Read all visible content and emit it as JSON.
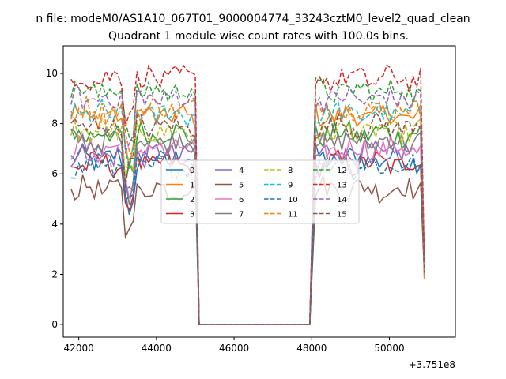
{
  "chart_data": {
    "type": "line",
    "suptitle": "n file: modeM0/AS1A10_067T01_9000004774_33243cztM0_level2_quad_clean",
    "title": "Quadrant 1 module wise count rates with 100.0s bins.",
    "xlabel": "",
    "ylabel": "",
    "x_offset_label": "+3.751e8",
    "xlim": [
      41600,
      51700
    ],
    "ylim": [
      -0.5,
      11.1
    ],
    "x_ticks": [
      42000,
      44000,
      46000,
      48000,
      50000
    ],
    "x_tick_labels": [
      "42000",
      "44000",
      "46000",
      "48000",
      "50000"
    ],
    "y_ticks": [
      0,
      2,
      4,
      6,
      8,
      10
    ],
    "y_tick_labels": [
      "0",
      "2",
      "4",
      "6",
      "8",
      "10"
    ],
    "legend_location": "center",
    "legend_columns": 4,
    "segments": [
      {
        "x_start": 41800,
        "x_end": 45000,
        "bins": 33
      },
      {
        "x_start": 48000,
        "x_end": 50900,
        "bins": 30
      }
    ],
    "gap": {
      "x_from": 45100,
      "x_to": 47950,
      "value": 0
    },
    "series": [
      {
        "name": "0",
        "color": "#1f77b4",
        "dash": "solid",
        "base": 6.6
      },
      {
        "name": "1",
        "color": "#ff7f0e",
        "dash": "solid",
        "base": 8.3
      },
      {
        "name": "2",
        "color": "#2ca02c",
        "dash": "solid",
        "base": 7.6
      },
      {
        "name": "3",
        "color": "#d62728",
        "dash": "solid",
        "base": 6.4
      },
      {
        "name": "4",
        "color": "#9467bd",
        "dash": "solid",
        "base": 6.8
      },
      {
        "name": "5",
        "color": "#8c564b",
        "dash": "solid",
        "base": 5.4
      },
      {
        "name": "6",
        "color": "#e377c2",
        "dash": "solid",
        "base": 7.0
      },
      {
        "name": "7",
        "color": "#7f7f7f",
        "dash": "solid",
        "base": 7.3
      },
      {
        "name": "8",
        "color": "#bcbd22",
        "dash": "dashed",
        "base": 7.7
      },
      {
        "name": "9",
        "color": "#17becf",
        "dash": "dashed",
        "base": 8.4
      },
      {
        "name": "10",
        "color": "#1f77b4",
        "dash": "dashed",
        "base": 6.3
      },
      {
        "name": "11",
        "color": "#ff7f0e",
        "dash": "dashed",
        "base": 8.6
      },
      {
        "name": "12",
        "color": "#2ca02c",
        "dash": "dashed",
        "base": 9.3
      },
      {
        "name": "13",
        "color": "#d62728",
        "dash": "dashed",
        "base": 9.8
      },
      {
        "name": "14",
        "color": "#9467bd",
        "dash": "dashed",
        "base": 9.0
      },
      {
        "name": "15",
        "color": "#8c564b",
        "dash": "dashed",
        "base": 7.9
      }
    ]
  }
}
